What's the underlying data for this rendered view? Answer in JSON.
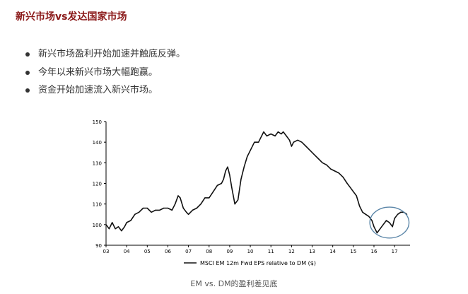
{
  "title": "新兴市场vs发达国家市场",
  "bullets": [
    "新兴市场盈利开始加速并触底反弹。",
    "今年以来新兴市场大幅跑赢。",
    "资金开始加速流入新兴市场。"
  ],
  "caption": "EM vs. DM的盈利差见底",
  "colors": {
    "title": "#8b1a1a",
    "line": "#111111",
    "highlight_circle": "#5b86a8"
  },
  "chart_data": {
    "type": "line",
    "title": "",
    "xlabel": "",
    "ylabel": "",
    "ylim": [
      90,
      150
    ],
    "yticks": [
      "90",
      "100",
      "110",
      "120",
      "130",
      "140",
      "150"
    ],
    "xlim": [
      2003,
      2017.75
    ],
    "xticks": [
      "03",
      "04",
      "05",
      "06",
      "07",
      "08",
      "09",
      "10",
      "11",
      "12",
      "13",
      "14",
      "15",
      "16",
      "17"
    ],
    "grid": false,
    "legend": "bottom",
    "series": [
      {
        "name": "MSCI EM 12m Fwd EPS relative to DM ($)",
        "x": [
          2003.0,
          2003.15,
          2003.3,
          2003.45,
          2003.6,
          2003.75,
          2003.9,
          2004.0,
          2004.2,
          2004.4,
          2004.6,
          2004.8,
          2005.0,
          2005.2,
          2005.4,
          2005.6,
          2005.8,
          2006.0,
          2006.2,
          2006.35,
          2006.5,
          2006.6,
          2006.75,
          2006.9,
          2007.0,
          2007.2,
          2007.4,
          2007.6,
          2007.8,
          2008.0,
          2008.2,
          2008.4,
          2008.6,
          2008.7,
          2008.8,
          2008.9,
          2009.0,
          2009.1,
          2009.25,
          2009.4,
          2009.55,
          2009.7,
          2009.85,
          2010.0,
          2010.2,
          2010.4,
          2010.5,
          2010.65,
          2010.8,
          2011.0,
          2011.2,
          2011.35,
          2011.5,
          2011.6,
          2011.75,
          2011.9,
          2012.0,
          2012.1,
          2012.3,
          2012.5,
          2012.7,
          2012.9,
          2013.1,
          2013.3,
          2013.5,
          2013.7,
          2013.9,
          2014.1,
          2014.3,
          2014.5,
          2014.7,
          2014.85,
          2015.0,
          2015.15,
          2015.3,
          2015.45,
          2015.6,
          2015.75,
          2015.9,
          2016.0,
          2016.15,
          2016.3,
          2016.45,
          2016.6,
          2016.75,
          2016.9,
          2017.0,
          2017.15,
          2017.3,
          2017.45,
          2017.6
        ],
        "values": [
          100,
          98,
          101,
          98,
          99,
          97,
          99,
          101,
          102,
          105,
          106,
          108,
          108,
          106,
          107,
          107,
          108,
          108,
          107,
          110,
          114,
          113,
          108,
          106,
          105,
          107,
          108,
          110,
          113,
          113,
          116,
          119,
          120,
          122,
          126,
          128,
          124,
          118,
          110,
          112,
          122,
          128,
          133,
          136,
          140,
          140,
          142,
          145,
          143,
          144,
          143,
          145,
          144,
          145,
          143,
          141,
          138,
          140,
          141,
          140,
          138,
          136,
          134,
          132,
          130,
          129,
          127,
          126,
          125,
          123,
          120,
          118,
          116,
          114,
          109,
          106,
          105,
          104,
          102,
          99,
          96,
          98,
          100,
          102,
          101,
          99,
          103,
          105,
          106,
          106,
          105
        ]
      }
    ],
    "annotations": [
      {
        "type": "circle",
        "x": 2016.75,
        "y": 101,
        "rx_years": 0.95,
        "ry_units": 7.5
      }
    ]
  }
}
